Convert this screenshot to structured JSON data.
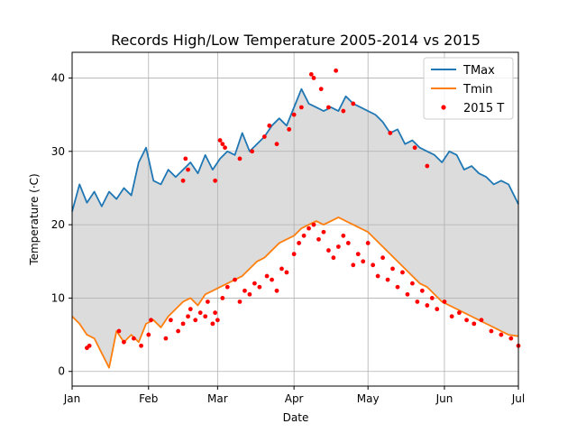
{
  "chart_data": {
    "type": "line",
    "title": "Records High/Low Temperature 2005-2014 vs 2015",
    "xlabel": "Date",
    "ylabel": "Temperature (·C)",
    "x_ticks": [
      "Jan",
      "Feb",
      "Mar",
      "Apr",
      "May",
      "Jun",
      "Jul"
    ],
    "y_ticks": [
      0,
      10,
      20,
      30,
      40
    ],
    "ylim": [
      -2,
      43.5
    ],
    "grid": true,
    "fill_between": {
      "upper": "TMax",
      "lower": "Tmin",
      "color": "#dcdcdc"
    },
    "legend": {
      "position": "top-right",
      "entries": [
        "TMax",
        "Tmin",
        "2015 T"
      ]
    },
    "series": [
      {
        "name": "TMax",
        "kind": "line",
        "color": "#1f77b4",
        "date_step_days": 3,
        "dates": [
          "2015-01-01",
          "2015-01-04",
          "2015-01-07",
          "2015-01-10",
          "2015-01-13",
          "2015-01-16",
          "2015-01-19",
          "2015-01-22",
          "2015-01-25",
          "2015-01-28",
          "2015-01-31",
          "2015-02-03",
          "2015-02-06",
          "2015-02-09",
          "2015-02-12",
          "2015-02-15",
          "2015-02-18",
          "2015-02-21",
          "2015-02-24",
          "2015-02-27",
          "2015-03-02",
          "2015-03-05",
          "2015-03-08",
          "2015-03-11",
          "2015-03-14",
          "2015-03-17",
          "2015-03-20",
          "2015-03-23",
          "2015-03-26",
          "2015-03-29",
          "2015-04-01",
          "2015-04-04",
          "2015-04-07",
          "2015-04-10",
          "2015-04-13",
          "2015-04-16",
          "2015-04-19",
          "2015-04-22",
          "2015-04-25",
          "2015-04-28",
          "2015-05-01",
          "2015-05-04",
          "2015-05-07",
          "2015-05-10",
          "2015-05-13",
          "2015-05-16",
          "2015-05-19",
          "2015-05-22",
          "2015-05-25",
          "2015-05-28",
          "2015-05-31",
          "2015-06-03",
          "2015-06-06",
          "2015-06-09",
          "2015-06-12",
          "2015-06-15",
          "2015-06-18",
          "2015-06-21",
          "2015-06-24",
          "2015-06-27",
          "2015-07-01"
        ],
        "values": [
          21.8,
          25.5,
          23.0,
          24.5,
          22.5,
          24.5,
          23.5,
          25.0,
          24.0,
          28.5,
          30.5,
          26.0,
          25.5,
          27.5,
          26.5,
          27.5,
          28.5,
          27.0,
          29.5,
          27.5,
          29.0,
          30.0,
          29.5,
          32.5,
          30.0,
          31.0,
          32.0,
          33.5,
          34.5,
          33.5,
          36.0,
          38.5,
          36.5,
          36.0,
          35.5,
          36.0,
          35.5,
          37.5,
          36.5,
          36.0,
          35.5,
          35.0,
          34.0,
          32.5,
          33.0,
          31.0,
          31.5,
          30.5,
          30.0,
          29.5,
          28.5,
          30.0,
          29.5,
          27.5,
          28.0,
          27.0,
          26.5,
          25.5,
          26.0,
          25.5,
          22.8
        ]
      },
      {
        "name": "Tmin",
        "kind": "line",
        "color": "#ff7f0e",
        "date_step_days": 3,
        "dates": [
          "2015-01-01",
          "2015-01-04",
          "2015-01-07",
          "2015-01-10",
          "2015-01-13",
          "2015-01-16",
          "2015-01-19",
          "2015-01-22",
          "2015-01-25",
          "2015-01-28",
          "2015-01-31",
          "2015-02-03",
          "2015-02-06",
          "2015-02-09",
          "2015-02-12",
          "2015-02-15",
          "2015-02-18",
          "2015-02-21",
          "2015-02-24",
          "2015-02-27",
          "2015-03-02",
          "2015-03-05",
          "2015-03-08",
          "2015-03-11",
          "2015-03-14",
          "2015-03-17",
          "2015-03-20",
          "2015-03-23",
          "2015-03-26",
          "2015-03-29",
          "2015-04-01",
          "2015-04-04",
          "2015-04-07",
          "2015-04-10",
          "2015-04-13",
          "2015-04-16",
          "2015-04-19",
          "2015-04-22",
          "2015-04-25",
          "2015-04-28",
          "2015-05-01",
          "2015-05-04",
          "2015-05-07",
          "2015-05-10",
          "2015-05-13",
          "2015-05-16",
          "2015-05-19",
          "2015-05-22",
          "2015-05-25",
          "2015-05-28",
          "2015-05-31",
          "2015-06-03",
          "2015-06-06",
          "2015-06-09",
          "2015-06-12",
          "2015-06-15",
          "2015-06-18",
          "2015-06-21",
          "2015-06-24",
          "2015-06-27",
          "2015-07-01"
        ],
        "values": [
          7.5,
          6.5,
          5.0,
          4.5,
          2.5,
          0.5,
          5.5,
          4.0,
          5.0,
          4.0,
          6.5,
          7.0,
          6.0,
          7.5,
          8.5,
          9.5,
          10.0,
          9.0,
          10.5,
          11.0,
          11.5,
          12.0,
          12.5,
          13.0,
          14.0,
          15.0,
          15.5,
          16.5,
          17.5,
          18.0,
          18.5,
          19.5,
          20.0,
          20.5,
          20.0,
          20.5,
          21.0,
          20.5,
          20.0,
          19.5,
          19.0,
          18.0,
          17.0,
          16.0,
          15.0,
          14.0,
          13.0,
          12.0,
          11.5,
          10.5,
          9.5,
          9.0,
          8.5,
          8.0,
          7.5,
          7.0,
          6.5,
          6.0,
          5.5,
          5.0,
          4.8
        ]
      },
      {
        "name": "2015 T",
        "kind": "scatter",
        "color": "#ff0000",
        "points": [
          [
            "2015-01-07",
            3.2
          ],
          [
            "2015-01-08",
            3.5
          ],
          [
            "2015-01-20",
            5.5
          ],
          [
            "2015-01-22",
            4.0
          ],
          [
            "2015-01-26",
            4.5
          ],
          [
            "2015-01-29",
            3.5
          ],
          [
            "2015-02-01",
            5.0
          ],
          [
            "2015-02-02",
            7.0
          ],
          [
            "2015-02-08",
            4.5
          ],
          [
            "2015-02-10",
            7.0
          ],
          [
            "2015-02-13",
            5.5
          ],
          [
            "2015-02-15",
            6.5
          ],
          [
            "2015-02-17",
            7.5
          ],
          [
            "2015-02-18",
            8.5
          ],
          [
            "2015-02-20",
            7.0
          ],
          [
            "2015-02-22",
            8.0
          ],
          [
            "2015-02-24",
            7.5
          ],
          [
            "2015-02-25",
            9.5
          ],
          [
            "2015-02-27",
            6.5
          ],
          [
            "2015-02-28",
            8.0
          ],
          [
            "2015-03-01",
            7.0
          ],
          [
            "2015-03-03",
            10.0
          ],
          [
            "2015-03-05",
            11.5
          ],
          [
            "2015-03-08",
            12.5
          ],
          [
            "2015-03-10",
            9.5
          ],
          [
            "2015-03-12",
            11.0
          ],
          [
            "2015-03-14",
            10.5
          ],
          [
            "2015-03-16",
            12.0
          ],
          [
            "2015-03-18",
            11.5
          ],
          [
            "2015-03-21",
            13.0
          ],
          [
            "2015-03-23",
            12.5
          ],
          [
            "2015-03-25",
            11.0
          ],
          [
            "2015-03-27",
            14.0
          ],
          [
            "2015-03-29",
            13.5
          ],
          [
            "2015-04-01",
            16.0
          ],
          [
            "2015-04-03",
            17.5
          ],
          [
            "2015-04-05",
            18.5
          ],
          [
            "2015-04-07",
            19.5
          ],
          [
            "2015-04-09",
            20.0
          ],
          [
            "2015-04-11",
            18.0
          ],
          [
            "2015-04-13",
            19.0
          ],
          [
            "2015-04-15",
            16.5
          ],
          [
            "2015-04-17",
            15.5
          ],
          [
            "2015-04-19",
            17.0
          ],
          [
            "2015-04-21",
            18.5
          ],
          [
            "2015-04-23",
            17.5
          ],
          [
            "2015-04-25",
            14.5
          ],
          [
            "2015-04-27",
            16.0
          ],
          [
            "2015-04-29",
            15.0
          ],
          [
            "2015-05-01",
            17.5
          ],
          [
            "2015-05-03",
            14.5
          ],
          [
            "2015-05-05",
            13.0
          ],
          [
            "2015-05-07",
            15.5
          ],
          [
            "2015-05-09",
            12.5
          ],
          [
            "2015-05-11",
            14.0
          ],
          [
            "2015-05-13",
            11.5
          ],
          [
            "2015-05-15",
            13.5
          ],
          [
            "2015-05-17",
            10.5
          ],
          [
            "2015-05-19",
            12.0
          ],
          [
            "2015-05-21",
            9.5
          ],
          [
            "2015-05-23",
            11.0
          ],
          [
            "2015-05-25",
            9.0
          ],
          [
            "2015-05-27",
            10.0
          ],
          [
            "2015-05-29",
            8.5
          ],
          [
            "2015-06-01",
            9.5
          ],
          [
            "2015-06-04",
            7.5
          ],
          [
            "2015-06-07",
            8.0
          ],
          [
            "2015-06-10",
            7.0
          ],
          [
            "2015-06-13",
            6.5
          ],
          [
            "2015-06-16",
            7.0
          ],
          [
            "2015-06-20",
            5.5
          ],
          [
            "2015-06-24",
            5.0
          ],
          [
            "2015-06-28",
            4.5
          ],
          [
            "2015-07-01",
            3.5
          ],
          [
            "2015-02-15",
            26.0
          ],
          [
            "2015-02-16",
            29.0
          ],
          [
            "2015-02-17",
            27.5
          ],
          [
            "2015-02-28",
            26.0
          ],
          [
            "2015-03-02",
            31.5
          ],
          [
            "2015-03-03",
            31.0
          ],
          [
            "2015-03-04",
            30.5
          ],
          [
            "2015-03-10",
            29.0
          ],
          [
            "2015-03-15",
            30.0
          ],
          [
            "2015-03-20",
            32.0
          ],
          [
            "2015-03-22",
            33.5
          ],
          [
            "2015-03-25",
            31.0
          ],
          [
            "2015-03-30",
            33.0
          ],
          [
            "2015-04-01",
            35.0
          ],
          [
            "2015-04-04",
            36.0
          ],
          [
            "2015-04-08",
            40.5
          ],
          [
            "2015-04-09",
            40.0
          ],
          [
            "2015-04-12",
            38.5
          ],
          [
            "2015-04-15",
            36.0
          ],
          [
            "2015-04-18",
            41.0
          ],
          [
            "2015-04-21",
            35.5
          ],
          [
            "2015-04-25",
            36.5
          ],
          [
            "2015-05-10",
            32.5
          ],
          [
            "2015-05-20",
            30.5
          ],
          [
            "2015-05-25",
            28.0
          ]
        ]
      }
    ]
  }
}
